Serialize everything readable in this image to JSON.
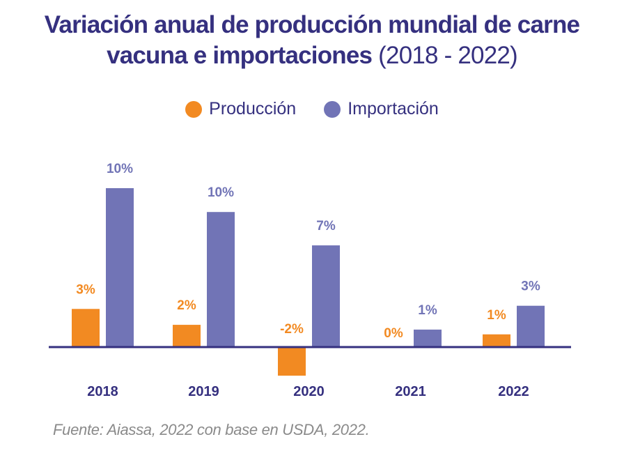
{
  "title": {
    "bold": "Variación anual de producción mundial de carne vacuna e importaciones",
    "line1": "Variación anual de producción mundial de carne",
    "line2_bold": "vacuna e importaciones",
    "line2_light": "(2018 - 2022)"
  },
  "colors": {
    "produccion": "#f28a22",
    "importacion": "#7174b6",
    "axis": "#35307f",
    "title": "#35307f",
    "source": "#8a8a8a"
  },
  "legend": [
    {
      "label": "Producción",
      "color": "#f28a22"
    },
    {
      "label": "Importación",
      "color": "#7174b6"
    }
  ],
  "source": "Fuente: Aiassa, 2022 con base en USDA, 2022.",
  "chart_data": {
    "type": "bar",
    "title": "Variación anual de producción mundial de carne vacuna e importaciones (2018 - 2022)",
    "xlabel": "",
    "ylabel": "",
    "categories": [
      "2018",
      "2019",
      "2020",
      "2021",
      "2022"
    ],
    "series": [
      {
        "name": "Producción",
        "color": "#f28a22",
        "values": [
          3,
          2,
          -2,
          0,
          1
        ],
        "labels": [
          "3%",
          "2%",
          "-2%",
          "0%",
          "1%"
        ],
        "estimated_plotted_values": [
          2.4,
          1.4,
          -1.8,
          0,
          0.8
        ]
      },
      {
        "name": "Importación",
        "color": "#7174b6",
        "values": [
          10,
          10,
          7,
          1,
          3
        ],
        "labels": [
          "10%",
          "10%",
          "7%",
          "1%",
          "3%"
        ],
        "estimated_plotted_values": [
          10,
          8.5,
          6.4,
          1.1,
          2.6
        ]
      }
    ],
    "ylim": [
      -2,
      10
    ],
    "grid": false,
    "y_axis_visible": false,
    "legend_position": "top-center",
    "unit": "%"
  }
}
